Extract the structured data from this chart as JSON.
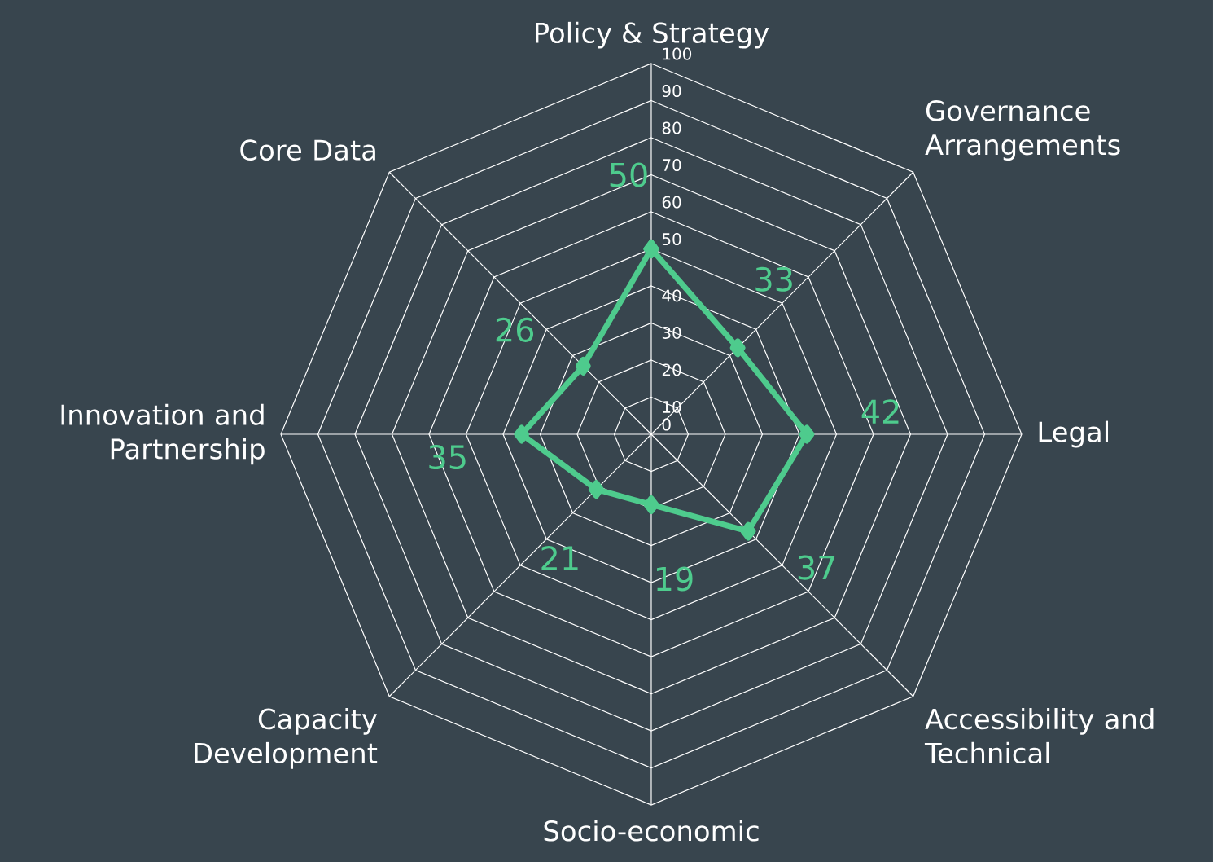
{
  "chart_data": {
    "type": "radar",
    "categories": [
      "Policy & Strategy",
      "Governance Arrangements",
      "Legal",
      "Accessibility and Technical",
      "Socio-economic",
      "Capacity Development",
      "Innovation and Partnership",
      "Core Data"
    ],
    "series": [
      {
        "color": "#4ecb8d",
        "values": [
          50,
          33,
          42,
          37,
          19,
          21,
          35,
          26
        ]
      }
    ],
    "ylim": [
      0,
      100
    ],
    "yticks": [
      0,
      10,
      20,
      30,
      40,
      50,
      60,
      70,
      80,
      90,
      100
    ],
    "data_labels": true,
    "marker": "diamond",
    "line_style": "solid",
    "grid": true
  }
}
